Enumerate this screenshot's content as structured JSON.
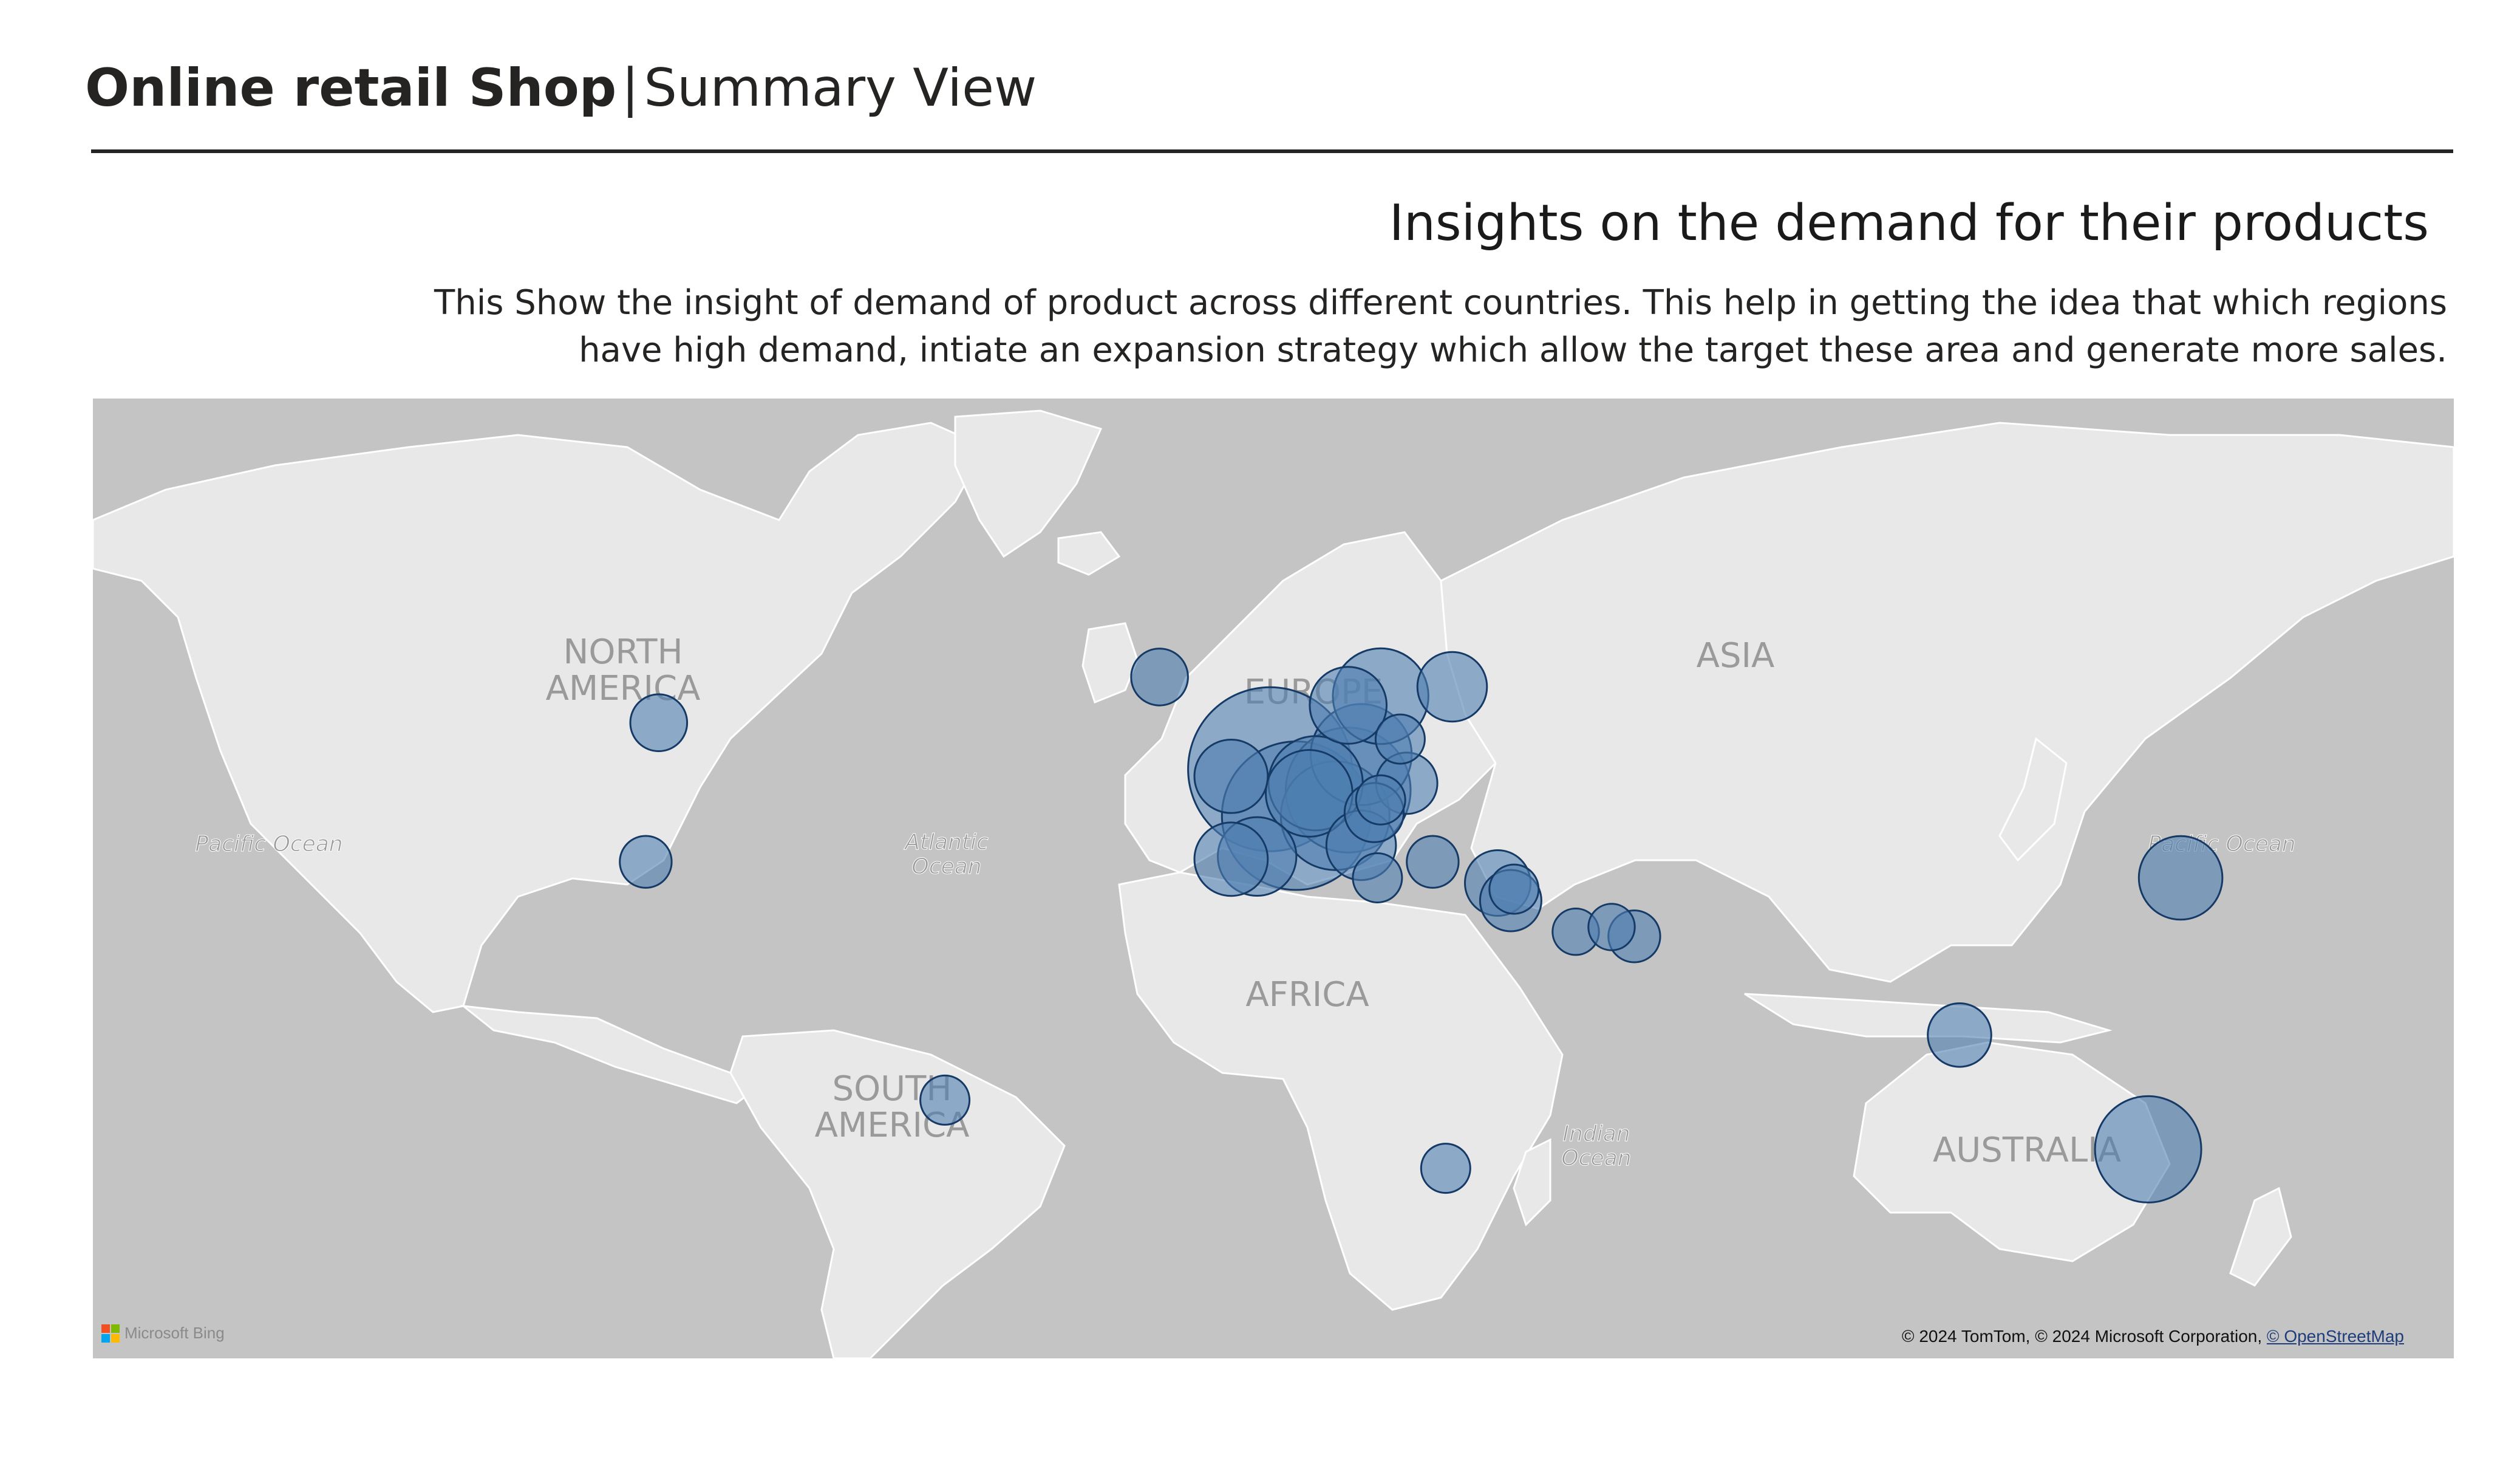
{
  "header": {
    "title_bold": "Online retail Shop",
    "separator": "|",
    "title_light": "Summary View"
  },
  "insight": {
    "title": "Insights on the demand for their products",
    "description": "This Show the insight of demand of product across different countries. This help in getting the idea that which regions have high demand, intiate an expansion strategy which allow the target these area and generate more sales."
  },
  "map": {
    "continent_labels": {
      "north_america_1": "NORTH",
      "north_america_2": "AMERICA",
      "south_america_1": "SOUTH",
      "south_america_2": "AMERICA",
      "europe": "EUROPE",
      "asia": "ASIA",
      "africa": "AFRICA",
      "australia": "AUSTRALIA"
    },
    "ocean_labels": {
      "pacific_west": "Pacific Ocean",
      "pacific_east": "Pacific Ocean",
      "atlantic_1": "Atlantic",
      "atlantic_2": "Ocean",
      "indian_1": "Indian",
      "indian_2": "Ocean"
    },
    "colors": {
      "water": "#c4c4c4",
      "land": "#e8e8e8",
      "border": "#ffffff",
      "bubble_fill": "#4f7eb0",
      "bubble_stroke": "#163a66"
    },
    "bing_logo_text": "Microsoft Bing",
    "copyright_text": "© 2024 TomTom, © 2024 Microsoft Corporation, ",
    "copyright_link": "© OpenStreetMap"
  },
  "markers": [
    {
      "lon": -2,
      "lat": 54,
      "size": 1.0
    },
    {
      "lon": 2,
      "lat": 47,
      "size": 0.82
    },
    {
      "lon": 10,
      "lat": 51,
      "size": 0.58
    },
    {
      "lon": 8,
      "lat": 47,
      "size": 0.44
    },
    {
      "lon": 5,
      "lat": 52,
      "size": 0.33
    },
    {
      "lon": 4,
      "lat": 50.5,
      "size": 0.28
    },
    {
      "lon": 12,
      "lat": 56,
      "size": 0.38
    },
    {
      "lon": 10,
      "lat": 62,
      "size": 0.22
    },
    {
      "lon": 15,
      "lat": 63,
      "size": 0.34
    },
    {
      "lon": 26,
      "lat": 64,
      "size": 0.18
    },
    {
      "lon": -8,
      "lat": 53,
      "size": 0.2
    },
    {
      "lon": -4,
      "lat": 40,
      "size": 0.23
    },
    {
      "lon": -8,
      "lat": 39.5,
      "size": 0.2
    },
    {
      "lon": 12,
      "lat": 42,
      "size": 0.18
    },
    {
      "lon": 14,
      "lat": 47.5,
      "size": 0.13
    },
    {
      "lon": 19,
      "lat": 52,
      "size": 0.14
    },
    {
      "lon": 18,
      "lat": 58,
      "size": 0.09
    },
    {
      "lon": 15,
      "lat": 49.5,
      "size": 0.09
    },
    {
      "lon": -19,
      "lat": 65,
      "size": 0.12
    },
    {
      "lon": 14.5,
      "lat": 36,
      "size": 0.09
    },
    {
      "lon": 23,
      "lat": 39,
      "size": 0.1
    },
    {
      "lon": 33,
      "lat": 35,
      "size": 0.16
    },
    {
      "lon": 35,
      "lat": 31.5,
      "size": 0.14
    },
    {
      "lon": 35.5,
      "lat": 33.8,
      "size": 0.09
    },
    {
      "lon": 45,
      "lat": 25,
      "size": 0.08
    },
    {
      "lon": 50.5,
      "lat": 26,
      "size": 0.08
    },
    {
      "lon": 54,
      "lat": 24,
      "size": 0.1
    },
    {
      "lon": -96,
      "lat": 60,
      "size": 0.12
    },
    {
      "lon": -98,
      "lat": 39,
      "size": 0.1
    },
    {
      "lon": -52,
      "lat": -14,
      "size": 0.09
    },
    {
      "lon": 25,
      "lat": -29,
      "size": 0.09
    },
    {
      "lon": 138,
      "lat": 36,
      "size": 0.26
    },
    {
      "lon": 104,
      "lat": 1.3,
      "size": 0.15
    },
    {
      "lon": 133,
      "lat": -25,
      "size": 0.42
    }
  ]
}
